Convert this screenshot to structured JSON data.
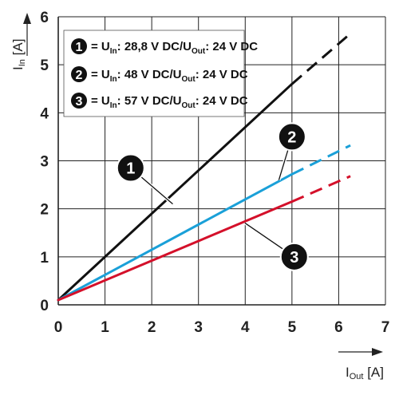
{
  "chart_data": {
    "type": "line",
    "x_axis": {
      "label_main": "I",
      "label_sub": "Out",
      "label_unit": " [A]",
      "range": [
        0,
        7
      ],
      "ticks": [
        0,
        1,
        2,
        3,
        4,
        5,
        6,
        7
      ]
    },
    "y_axis": {
      "label_main": "I",
      "label_sub": "In",
      "label_unit": " [A]",
      "range": [
        0,
        6
      ],
      "ticks": [
        0,
        1,
        2,
        3,
        4,
        5,
        6
      ]
    },
    "grid": true,
    "legend_position": "top-left",
    "series": [
      {
        "id": "1",
        "legend": {
          "p1": "= U",
          "s1": "In",
          "p2": ": 28,8 V DC/U",
          "s2": "Out",
          "p3": ": 24 V DC"
        },
        "color": "#111111",
        "solid": [
          [
            0,
            0.1
          ],
          [
            5,
            4.6
          ]
        ],
        "dashed": [
          [
            5,
            4.6
          ],
          [
            6.25,
            5.65
          ]
        ]
      },
      {
        "id": "2",
        "legend": {
          "p1": "= U",
          "s1": "In",
          "p2": ": 48 V DC/U",
          "s2": "Out",
          "p3": ": 24 V DC"
        },
        "color": "#1aa0d8",
        "solid": [
          [
            0,
            0.1
          ],
          [
            5,
            2.72
          ]
        ],
        "dashed": [
          [
            5,
            2.72
          ],
          [
            6.25,
            3.32
          ]
        ]
      },
      {
        "id": "3",
        "legend": {
          "p1": "= U",
          "s1": "In",
          "p2": ": 57 V DC/U",
          "s2": "Out",
          "p3": ": 24 V DC"
        },
        "color": "#d4102a",
        "solid": [
          [
            0,
            0.1
          ],
          [
            5,
            2.15
          ]
        ],
        "dashed": [
          [
            5,
            2.15
          ],
          [
            6.25,
            2.68
          ]
        ]
      }
    ],
    "callouts": [
      {
        "id": "1",
        "at": [
          1.55,
          2.85
        ],
        "target": [
          2.45,
          2.1
        ]
      },
      {
        "id": "2",
        "at": [
          5.0,
          3.5
        ],
        "target": [
          4.72,
          2.6
        ]
      },
      {
        "id": "3",
        "at": [
          5.05,
          1.0
        ],
        "target": [
          4.0,
          1.7
        ]
      }
    ]
  }
}
